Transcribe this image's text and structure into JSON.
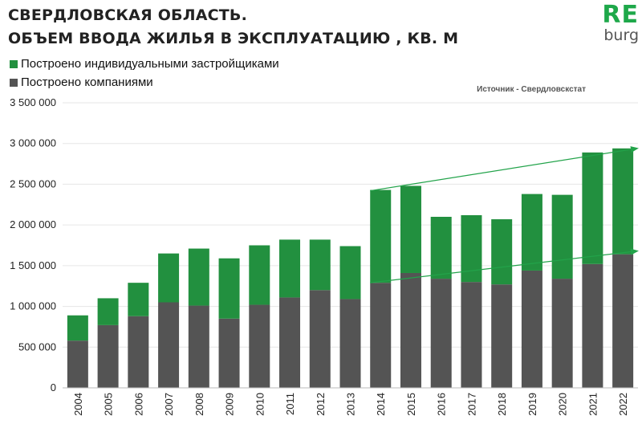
{
  "title_lines": [
    "СВЕРДЛОВСКАЯ ОБЛАСТЬ.",
    "ОБЪЕМ ВВОДА ЖИЛЬЯ В ЭКСПЛУАТАЦИЮ , КВ. М"
  ],
  "logo": {
    "re": "RE",
    "burg": "burg"
  },
  "source": "Источник - Свердловскстат",
  "colors": {
    "individual": "#22903f",
    "companies": "#545454",
    "trend": "#22a34a",
    "grid": "#e6e6e6"
  },
  "chart_data": {
    "type": "bar",
    "stacked": true,
    "categories": [
      "2004",
      "2005",
      "2006",
      "2007",
      "2008",
      "2009",
      "2010",
      "2011",
      "2012",
      "2013",
      "2014",
      "2015",
      "2016",
      "2017",
      "2018",
      "2019",
      "2020",
      "2021",
      "2022"
    ],
    "series": [
      {
        "name": "Построено компаниями",
        "values": [
          580000,
          770000,
          880000,
          1050000,
          1010000,
          850000,
          1020000,
          1110000,
          1200000,
          1090000,
          1290000,
          1410000,
          1340000,
          1300000,
          1270000,
          1440000,
          1340000,
          1520000,
          1640000
        ]
      },
      {
        "name": "Построено индивидуальными  застройщиками",
        "values": [
          310000,
          330000,
          410000,
          600000,
          700000,
          740000,
          730000,
          710000,
          620000,
          650000,
          1140000,
          1070000,
          760000,
          820000,
          800000,
          940000,
          1030000,
          1370000,
          1300000
        ]
      }
    ],
    "ylim": [
      0,
      3500000
    ],
    "yticks": [
      0,
      500000,
      1000000,
      1500000,
      2000000,
      2500000,
      3000000,
      3500000
    ],
    "ytick_labels": [
      "0",
      "500 000",
      "1 000 000",
      "1 500 000",
      "2 000 000",
      "2 500 000",
      "3 000 000",
      "3 500 000"
    ],
    "grid": true,
    "legend": "top-left",
    "trend_lines": [
      {
        "from": [
          "2014",
          2420000
        ],
        "to": [
          "2022",
          2940000
        ]
      },
      {
        "from": [
          "2014",
          1290000
        ],
        "to": [
          "2022",
          1680000
        ]
      }
    ]
  }
}
